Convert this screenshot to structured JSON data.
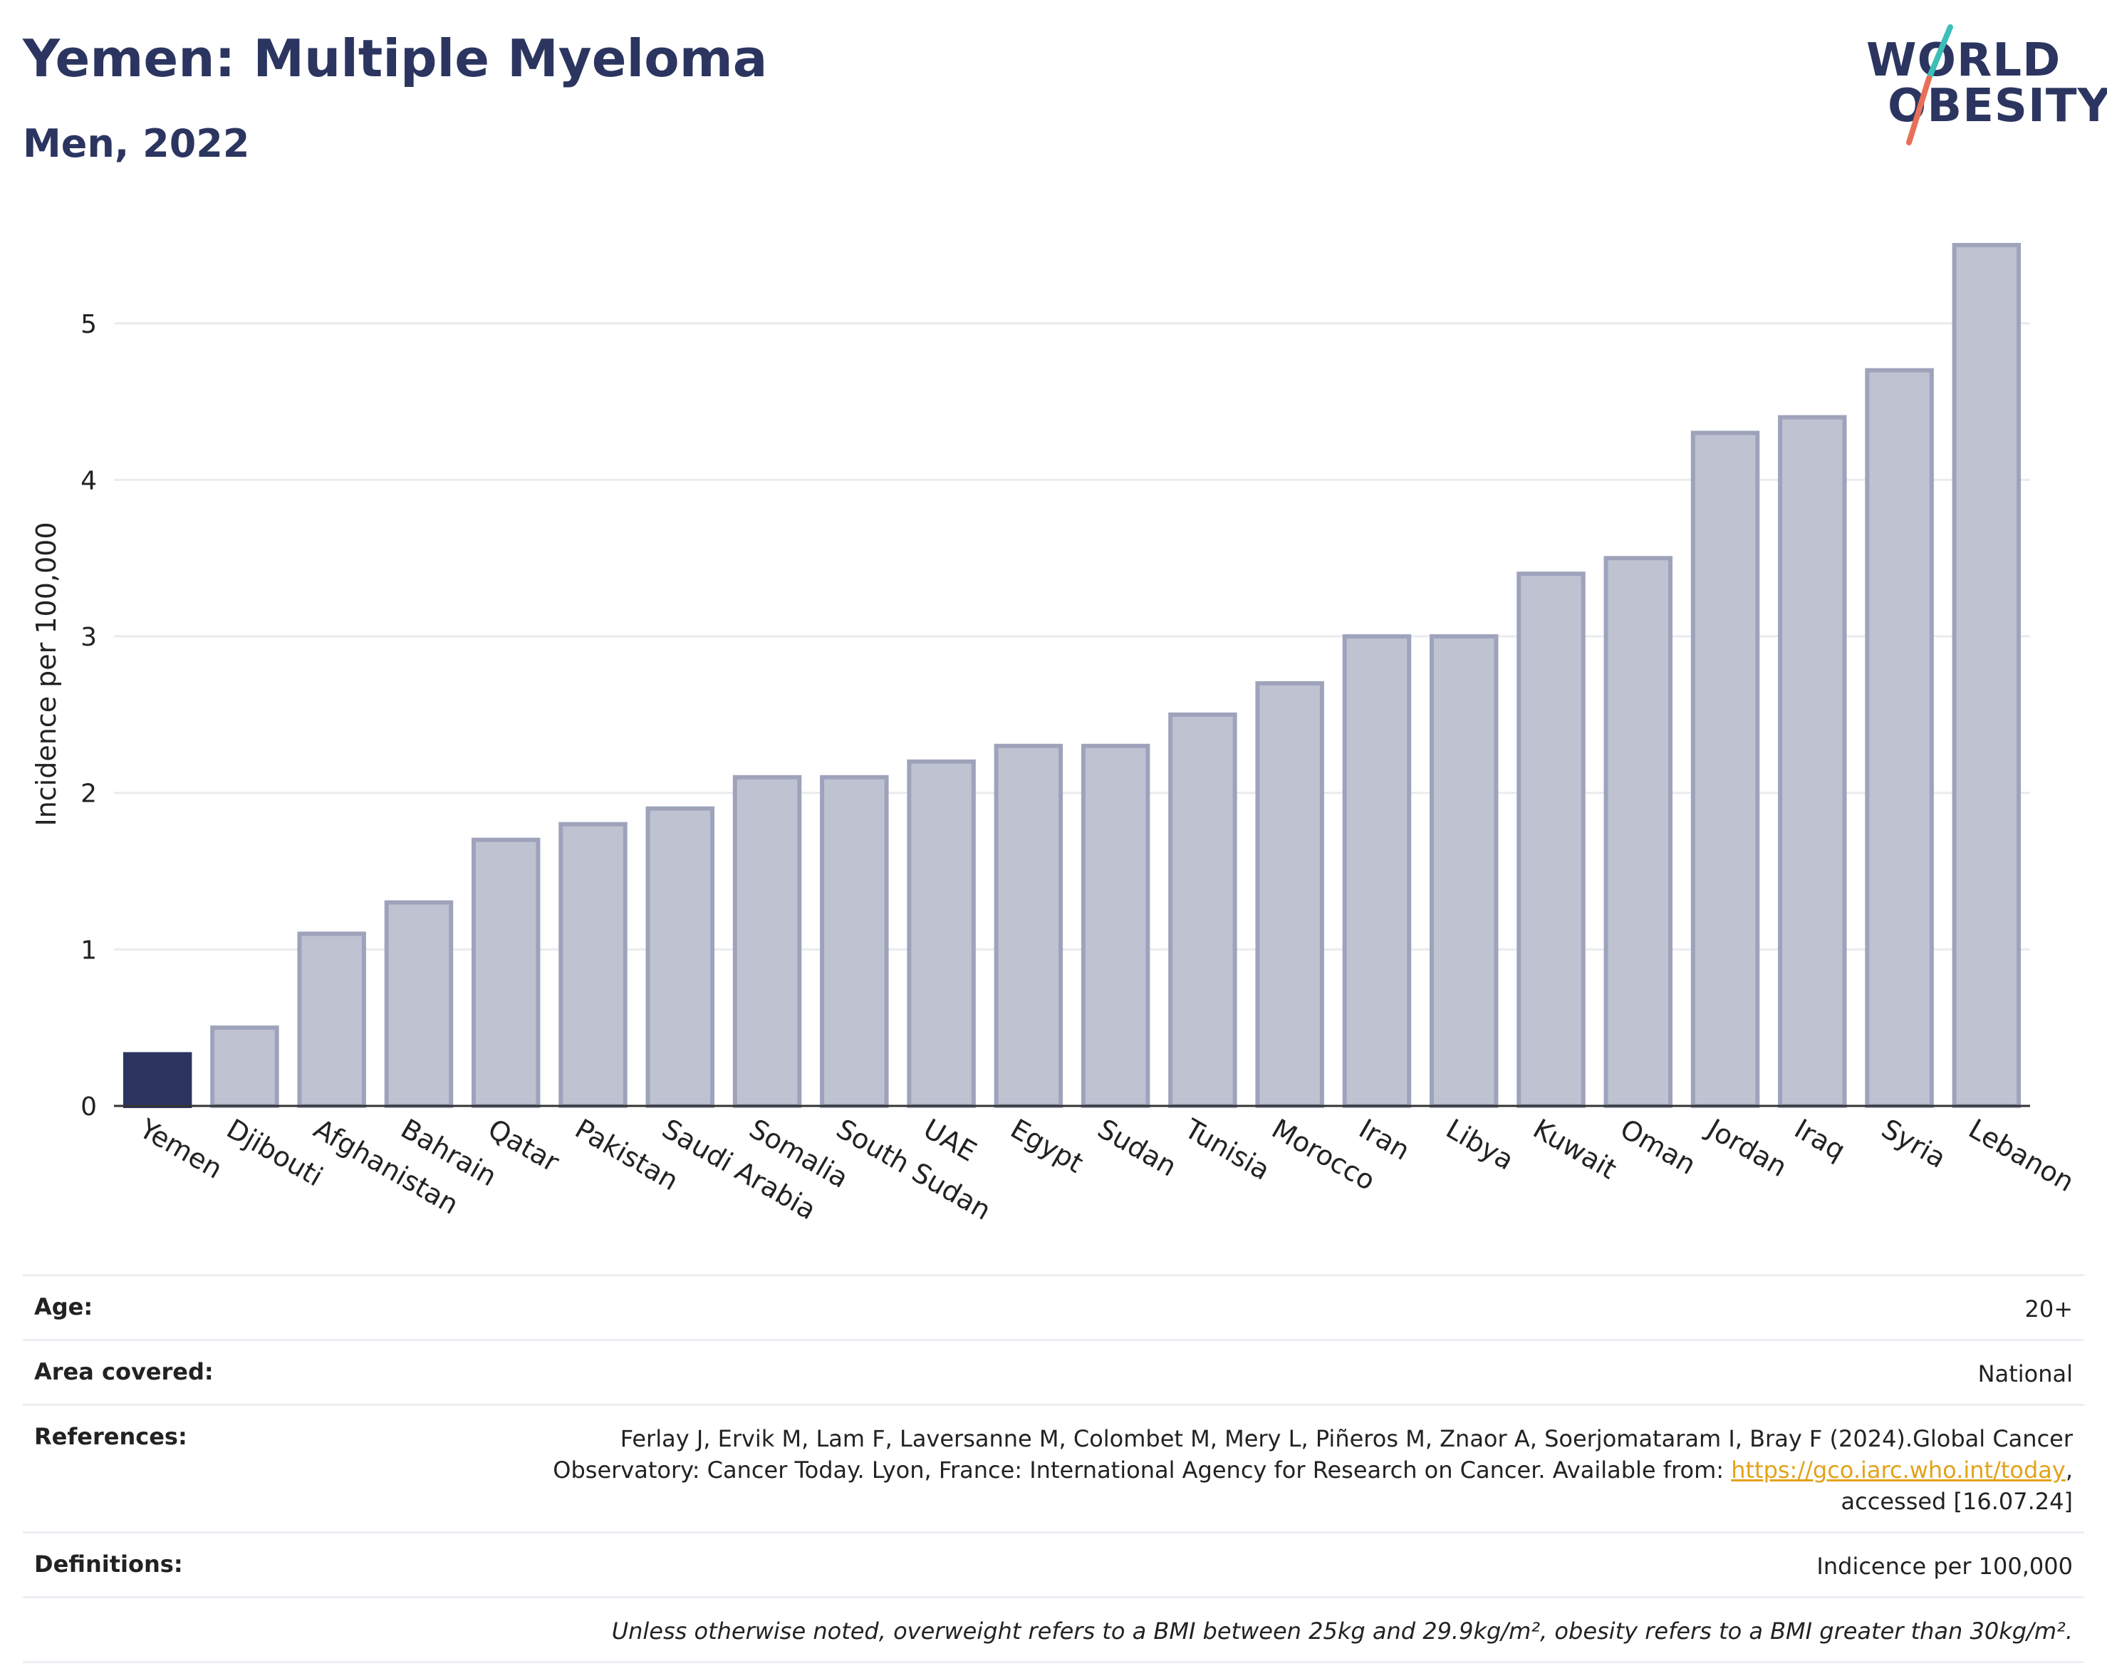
{
  "header": {
    "title": "Yemen: Multiple Myeloma",
    "subtitle": "Men, 2022"
  },
  "logo": {
    "line1": "WORLD",
    "line2": "OBESITY",
    "colors": {
      "text": "#2b3560",
      "slash_top": "#3bbfb8",
      "slash_bottom": "#e8705a"
    }
  },
  "chart_data": {
    "type": "bar",
    "ylabel": "Incidence per 100,000",
    "xlabel": "",
    "ylim": [
      0,
      5.7
    ],
    "yticks": [
      0,
      1,
      2,
      3,
      4,
      5
    ],
    "grid": true,
    "highlight": "Yemen",
    "colors": {
      "highlight": "#2b3560",
      "bar": "#bfc2d1",
      "bar_edge": "#9ea3bb"
    },
    "categories": [
      "Yemen",
      "Djibouti",
      "Afghanistan",
      "Bahrain",
      "Qatar",
      "Pakistan",
      "Saudi Arabia",
      "Somalia",
      "South Sudan",
      "UAE",
      "Egypt",
      "Sudan",
      "Tunisia",
      "Morocco",
      "Iran",
      "Libya",
      "Kuwait",
      "Oman",
      "Jordan",
      "Iraq",
      "Syria",
      "Lebanon"
    ],
    "values": [
      0.33,
      0.5,
      1.1,
      1.3,
      1.7,
      1.8,
      1.9,
      2.1,
      2.1,
      2.2,
      2.3,
      2.3,
      2.5,
      2.7,
      3.0,
      3.0,
      3.4,
      3.5,
      4.3,
      4.4,
      4.7,
      5.5
    ]
  },
  "info": {
    "age_label": "Age:",
    "age_value": "20+",
    "area_label": "Area covered:",
    "area_value": "National",
    "references_label": "References:",
    "references_line1": "Ferlay J, Ervik M, Lam F, Laversanne M, Colombet M, Mery L, Piñeros M, Znaor A, Soerjomataram I, Bray F (2024).Global Cancer",
    "references_line2": "Observatory: Cancer Today. Lyon, France: International Agency for Research on Cancer. Available from:",
    "references_link": "https://gco.iarc.who.int/today",
    "references_line3": "accessed [16.07.24]",
    "definitions_label": "Definitions:",
    "definitions_value": "Indicence per 100,000",
    "note": "Unless otherwise noted, overweight refers to a BMI between 25kg and 29.9kg/m², obesity refers to a BMI greater than 30kg/m²."
  }
}
